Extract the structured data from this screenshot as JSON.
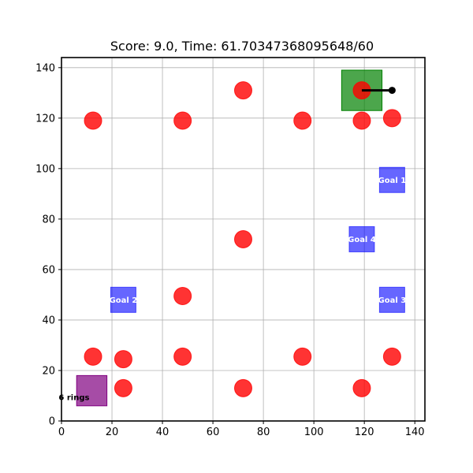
{
  "title": "Score: 9.0, Time: 61.70347368095648/60",
  "field": {
    "xlim": [
      0,
      144
    ],
    "ylim": [
      0,
      144
    ],
    "xticks": [
      0,
      20,
      40,
      60,
      80,
      100,
      120,
      140
    ],
    "yticks": [
      0,
      20,
      40,
      60,
      80,
      100,
      120,
      140
    ],
    "grid": true
  },
  "colors": {
    "ring": "#ff0000",
    "goal": "#0000ff",
    "robot": "#008000",
    "robot_heading": "#000000",
    "loader": "#800080"
  },
  "rings": [
    {
      "x": 12.5,
      "y": 119
    },
    {
      "x": 48,
      "y": 119
    },
    {
      "x": 72,
      "y": 131
    },
    {
      "x": 95.5,
      "y": 119
    },
    {
      "x": 119,
      "y": 119
    },
    {
      "x": 131,
      "y": 120
    },
    {
      "x": 119,
      "y": 131
    },
    {
      "x": 72,
      "y": 72
    },
    {
      "x": 48,
      "y": 49.5
    },
    {
      "x": 12.5,
      "y": 25.5
    },
    {
      "x": 24.5,
      "y": 24.5
    },
    {
      "x": 48,
      "y": 25.5
    },
    {
      "x": 95.5,
      "y": 25.5
    },
    {
      "x": 131,
      "y": 25.5
    },
    {
      "x": 24.5,
      "y": 13
    },
    {
      "x": 72,
      "y": 13
    },
    {
      "x": 119,
      "y": 13
    }
  ],
  "goals": [
    {
      "label": "Goal 1",
      "x": 131,
      "y": 95.5
    },
    {
      "label": "Goal 2",
      "x": 24.5,
      "y": 48
    },
    {
      "label": "Goal 3",
      "x": 131,
      "y": 48
    },
    {
      "label": "Goal 4",
      "x": 119,
      "y": 72
    }
  ],
  "robot": {
    "x": 119,
    "y": 131,
    "heading_to": {
      "x": 131,
      "y": 131
    }
  },
  "loader": {
    "x": 12,
    "y": 12,
    "label": "6 rings"
  }
}
